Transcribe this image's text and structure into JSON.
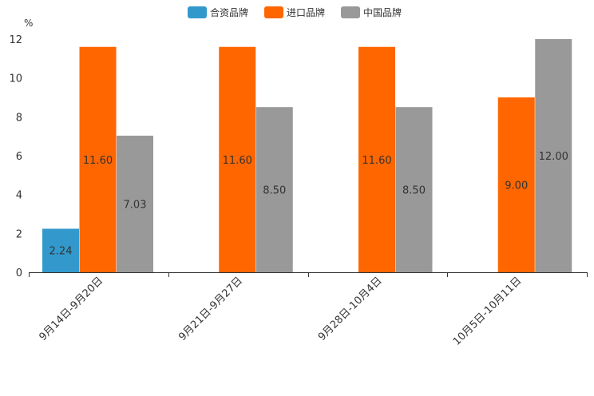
{
  "chart_data": {
    "type": "bar",
    "y_unit": "%",
    "ylim": [
      0,
      12
    ],
    "y_ticks": [
      "0",
      "2",
      "4",
      "6",
      "8",
      "10",
      "12"
    ],
    "y_tick_values": [
      0,
      2,
      4,
      6,
      8,
      10,
      12
    ],
    "categories": [
      "9月14日-9月20日",
      "9月21日-9月27日",
      "9月28日-10月4日",
      "10月5日-10月11日"
    ],
    "series": [
      {
        "name": "合资品牌",
        "color": "#3399cc",
        "values": [
          2.24,
          null,
          null,
          null
        ],
        "labels": [
          "2.24",
          "",
          "",
          ""
        ]
      },
      {
        "name": "进口品牌",
        "color": "#ff6600",
        "values": [
          11.6,
          11.6,
          11.6,
          9.0
        ],
        "labels": [
          "11.60",
          "11.60",
          "11.60",
          "9.00"
        ]
      },
      {
        "name": "中国品牌",
        "color": "#999999",
        "values": [
          7.03,
          8.5,
          8.5,
          12.0
        ],
        "labels": [
          "7.03",
          "8.50",
          "8.50",
          "12.00"
        ]
      }
    ],
    "legend_position": "top-center",
    "grid": false
  }
}
